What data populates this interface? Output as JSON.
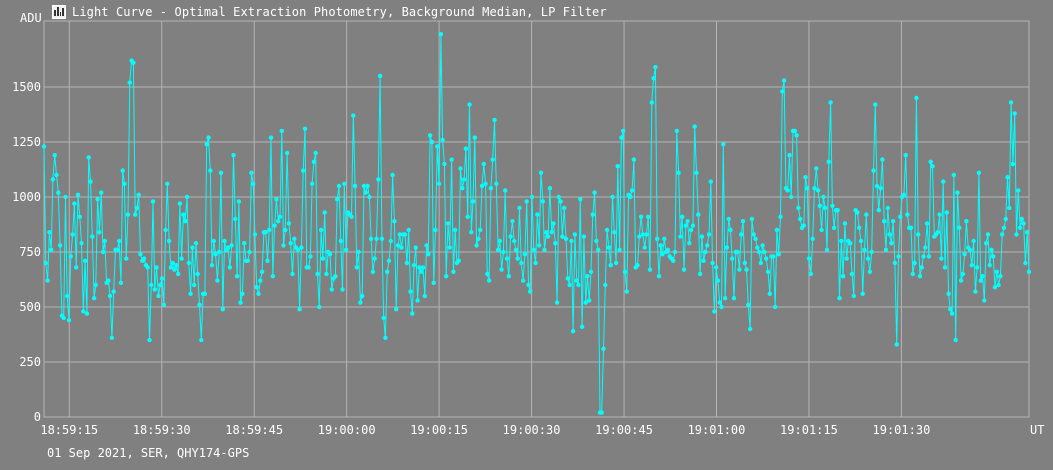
{
  "window": {
    "title": "Light Curve - Optimal Extraction Photometry, Background Median, LP Filter",
    "footer": "01 Sep 2021, SER, QHY174-GPS"
  },
  "colors": {
    "background": "#808080",
    "plot_area": "#7f7f7f",
    "grid": "#b4b4b4",
    "series": "#00ffff",
    "text": "#ffffff"
  },
  "chart_data": {
    "type": "line",
    "title": "Light Curve - Optimal Extraction Photometry, Background Median, LP Filter",
    "xlabel": "UT",
    "ylabel": "ADU",
    "grid": true,
    "ylim": [
      0,
      1800
    ],
    "yticks": [
      0,
      250,
      500,
      750,
      1000,
      1250,
      1500
    ],
    "xticks": [
      "18:59:15",
      "18:59:30",
      "18:59:45",
      "19:00:00",
      "19:00:15",
      "19:00:30",
      "19:00:45",
      "19:01:00",
      "19:01:15",
      "19:01:30"
    ],
    "xlim": [
      "18:59:10.9",
      "19:01:50.7"
    ],
    "series": [
      {
        "marker": "circle",
        "values": [
          1230,
          700,
          620,
          840,
          760,
          1080,
          1190,
          1100,
          1020,
          780,
          460,
          450,
          1000,
          550,
          440,
          730,
          830,
          970,
          680,
          1010,
          910,
          790,
          480,
          710,
          470,
          1180,
          1070,
          820,
          540,
          600,
          990,
          840,
          1020,
          750,
          800,
          610,
          620,
          550,
          360,
          570,
          760,
          760,
          800,
          610,
          1120,
          1060,
          720,
          920,
          1520,
          1620,
          1610,
          920,
          950,
          1010,
          740,
          710,
          720,
          690,
          680,
          350,
          600,
          980,
          580,
          680,
          550,
          600,
          630,
          510,
          850,
          1060,
          800,
          680,
          700,
          670,
          690,
          650,
          970,
          720,
          920,
          890,
          1000,
          700,
          560,
          770,
          600,
          790,
          650,
          510,
          350,
          560,
          560,
          1240,
          1270,
          1120,
          690,
          800,
          740,
          620,
          750,
          1110,
          490,
          800,
          760,
          770,
          680,
          780,
          1190,
          900,
          640,
          980,
          520,
          560,
          790,
          710,
          710,
          750,
          1110,
          1060,
          830,
          590,
          560,
          620,
          660,
          840,
          840,
          710,
          850,
          1270,
          640,
          870,
          990,
          890,
          910,
          1300,
          780,
          850,
          1200,
          880,
          790,
          650,
          810,
          770,
          760,
          490,
          770,
          1120,
          1310,
          680,
          680,
          730,
          1060,
          1160,
          1200,
          650,
          500,
          850,
          720,
          930,
          650,
          750,
          740,
          580,
          630,
          640,
          990,
          1050,
          800,
          580,
          1060,
          760,
          930,
          920,
          910,
          1370,
          1050,
          680,
          750,
          520,
          550,
          1050,
          1020,
          1050,
          1000,
          810,
          660,
          720,
          810,
          1080,
          1550,
          810,
          450,
          360,
          660,
          710,
          800,
          1100,
          890,
          490,
          780,
          830,
          770,
          830,
          830,
          700,
          850,
          570,
          470,
          690,
          770,
          530,
          680,
          660,
          680,
          550,
          780,
          740,
          1280,
          1250,
          610,
          850,
          1230,
          1060,
          1740,
          1260,
          1150,
          640,
          880,
          770,
          1170,
          660,
          850,
          700,
          710,
          1130,
          1040,
          1080,
          1220,
          910,
          1420,
          840,
          980,
          1270,
          780,
          810,
          850,
          1050,
          1150,
          1060,
          650,
          620,
          1040,
          1170,
          1350,
          1060,
          760,
          800,
          670,
          750,
          1030,
          720,
          640,
          820,
          890,
          800,
          760,
          720,
          950,
          700,
          620,
          740,
          980,
          600,
          570,
          1000,
          760,
          700,
          920,
          780,
          1110,
          980,
          760,
          840,
          820,
          1040,
          840,
          880,
          790,
          520,
          1000,
          980,
          820,
          950,
          810,
          630,
          600,
          800,
          390,
          830,
          620,
          600,
          990,
          410,
          820,
          520,
          640,
          530,
          660,
          920,
          1020,
          800,
          760,
          20,
          20,
          310,
          600,
          850,
          770,
          690,
          1000,
          840,
          700,
          1140,
          760,
          1270,
          1300,
          660,
          570,
          1010,
          1000,
          1030,
          1170,
          680,
          690,
          820,
          910,
          830,
          770,
          830,
          910,
          670,
          1430,
          1540,
          1590,
          810,
          640,
          780,
          740,
          810,
          750,
          760,
          730,
          720,
          710,
          750,
          1300,
          1110,
          820,
          910,
          670,
          870,
          890,
          790,
          850,
          870,
          1320,
          1110,
          920,
          650,
          820,
          710,
          750,
          780,
          830,
          1070,
          700,
          480,
          680,
          620,
          520,
          500,
          1240,
          540,
          770,
          900,
          850,
          720,
          540,
          750,
          750,
          670,
          830,
          890,
          700,
          670,
          510,
          400,
          900,
          830,
          810,
          770,
          750,
          700,
          780,
          750,
          720,
          660,
          560,
          730,
          730,
          500,
          850,
          740,
          910,
          1480,
          1530,
          1040,
          1030,
          1190,
          1000,
          1300,
          1300,
          1280,
          950,
          900,
          860,
          870,
          1090,
          1040,
          720,
          650,
          810,
          1040,
          1130,
          1030,
          960,
          850,
          1000,
          950,
          760,
          1160,
          1430,
          960,
          860,
          940,
          940,
          540,
          800,
          640,
          880,
          720,
          800,
          790,
          650,
          550,
          940,
          930,
          860,
          800,
          560,
          760,
          920,
          720,
          660,
          750,
          1120,
          1420,
          1050,
          940,
          1040,
          1170,
          890,
          760,
          950,
          830,
          790,
          890,
          700,
          330,
          730,
          910,
          1000,
          1010,
          1190,
          920,
          860,
          860,
          650,
          700,
          1450,
          830,
          640,
          680,
          730,
          770,
          880,
          730,
          1160,
          1140,
          820,
          830,
          840,
          920,
          720,
          1070,
          680,
          930,
          560,
          490,
          470,
          1100,
          350,
          1020,
          860,
          620,
          650,
          740,
          890,
          770,
          760,
          690,
          800,
          570,
          680,
          1110,
          620,
          640,
          530,
          790,
          830,
          690,
          760,
          730,
          590,
          660,
          600,
          640,
          830,
          860,
          900,
          1090,
          950,
          1430,
          1150,
          1380,
          830,
          1030,
          860,
          900,
          880,
          700,
          840,
          660
        ],
        "x_start": "18:59:10.9",
        "x_end": "19:01:50.7"
      }
    ]
  }
}
